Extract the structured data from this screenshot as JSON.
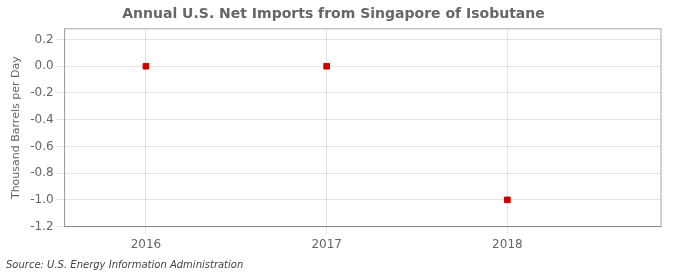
{
  "chart_data": {
    "type": "scatter",
    "title": "Annual U.S. Net Imports from Singapore of Isobutane",
    "ylabel": "Thousand Barrels per Day",
    "source": "Source: U.S. Energy Information Administration",
    "x": [
      2016,
      2017,
      2018
    ],
    "values": [
      0.0,
      0.0,
      -1.0
    ],
    "color": "#cc0000",
    "marker": "square",
    "xlim": [
      2015.55,
      2018.85
    ],
    "ylim": [
      -1.2,
      0.28
    ],
    "xticks": [
      2016,
      2017,
      2018
    ],
    "yticks": [
      0.2,
      {
        "value": 0.0,
        "label": "0.0"
      },
      -0.2,
      -0.4,
      -0.6,
      -0.8,
      {
        "value": -1.0,
        "label": "-1.0"
      },
      -1.2
    ],
    "grid": true
  }
}
